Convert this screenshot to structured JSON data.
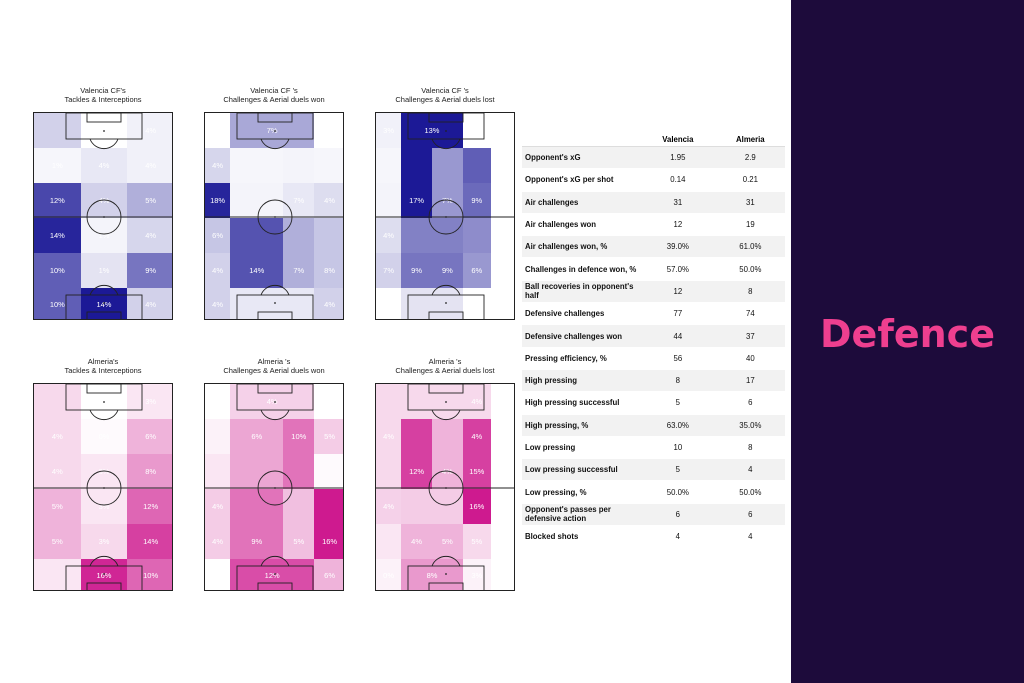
{
  "panel_title": "Defence",
  "colors": {
    "panel_bg": "#1d0b3b",
    "panel_title": "#ee3f8f",
    "valencia_base": [
      28,
      25,
      150
    ],
    "almeria_base": [
      200,
      0,
      130
    ]
  },
  "chart_data": [
    {
      "type": "heatmap",
      "team": "valencia",
      "title": [
        "Valencia CF's",
        "Tackles & Interceptions"
      ],
      "rows": [
        {
          "fr": [
            0.2,
            0.0,
            0.06
          ],
          "lab": [
            "",
            "8%",
            "4%"
          ]
        },
        {
          "fr": [
            0.04,
            0.1,
            0.06
          ],
          "lab": [
            "1%",
            "4%",
            "4%"
          ]
        },
        {
          "fr": [
            0.8,
            0.2,
            0.35
          ],
          "lab": [
            "12%",
            "4%",
            "5%"
          ]
        },
        {
          "fr": [
            0.95,
            0.05,
            0.18
          ],
          "lab": [
            "14%",
            "1%",
            "4%"
          ]
        },
        {
          "fr": [
            0.7,
            0.12,
            0.6
          ],
          "lab": [
            "10%",
            "1%",
            "9%"
          ]
        },
        {
          "fr": [
            0.7,
            1.0,
            0.2
          ],
          "lab": [
            "10%",
            "14%",
            "4%"
          ]
        }
      ]
    },
    {
      "type": "heatmap",
      "team": "valencia",
      "title": [
        "Valencia CF 's",
        "Challenges & Aerial duels won"
      ],
      "cols": [
        0.18,
        0.38,
        0.22,
        0.22
      ],
      "rows": [
        {
          "merge": true,
          "fr": [
            0.0,
            0.38,
            0.0
          ],
          "lab": [
            "",
            "7%",
            "0%"
          ]
        },
        {
          "fr": [
            0.18,
            0.04,
            0.05,
            0.04
          ],
          "lab": [
            "4%",
            "",
            "",
            ""
          ]
        },
        {
          "fr": [
            0.95,
            0.05,
            0.1,
            0.15
          ],
          "lab": [
            "18%",
            "",
            "7%",
            "4%"
          ]
        },
        {
          "fr": [
            0.25,
            0.75,
            0.35,
            0.25
          ],
          "lab": [
            "6%",
            "",
            "",
            ""
          ]
        },
        {
          "fr": [
            0.2,
            0.75,
            0.35,
            0.25
          ],
          "lab": [
            "4%",
            "14%",
            "7%",
            "8%"
          ]
        },
        {
          "merge": true,
          "fr": [
            0.2,
            0.1,
            0.2
          ],
          "lab": [
            "4%",
            "",
            "4%"
          ]
        }
      ]
    },
    {
      "type": "heatmap",
      "team": "valencia",
      "title": [
        "Valencia CF 's",
        "Challenges & Aerial duels lost"
      ],
      "cols": [
        0.18,
        0.22,
        0.22,
        0.2
      ],
      "rows": [
        {
          "merge": true,
          "fr": [
            0.06,
            1.0,
            0.0
          ],
          "lab": [
            "3%",
            "13%",
            ""
          ]
        },
        {
          "fr": [
            0.04,
            1.0,
            0.45,
            0.7
          ],
          "lab": [
            "",
            "",
            "",
            ""
          ]
        },
        {
          "fr": [
            0.05,
            1.0,
            0.45,
            0.65
          ],
          "lab": [
            "",
            "17%",
            "7%",
            "9%"
          ]
        },
        {
          "fr": [
            0.15,
            0.55,
            0.55,
            0.5
          ],
          "lab": [
            "4%",
            "",
            "",
            ""
          ]
        },
        {
          "fr": [
            0.2,
            0.6,
            0.6,
            0.45
          ],
          "lab": [
            "7%",
            "9%",
            "9%",
            "6%"
          ]
        },
        {
          "merge": true,
          "fr": [
            0.0,
            0.12,
            0.0
          ],
          "lab": [
            "0%",
            "",
            "0%"
          ]
        }
      ]
    },
    {
      "type": "heatmap",
      "team": "almeria",
      "title": [
        "Almeria's",
        "Tackles & Interceptions"
      ],
      "rows": [
        {
          "fr": [
            0.15,
            0.0,
            0.1
          ],
          "lab": [
            "",
            "",
            "3%"
          ]
        },
        {
          "fr": [
            0.15,
            0.02,
            0.3
          ],
          "lab": [
            "4%",
            "0%",
            "6%"
          ]
        },
        {
          "fr": [
            0.15,
            0.1,
            0.4
          ],
          "lab": [
            "4%",
            "3%",
            "8%"
          ]
        },
        {
          "fr": [
            0.3,
            0.1,
            0.6
          ],
          "lab": [
            "5%",
            "3%",
            "12%"
          ]
        },
        {
          "fr": [
            0.3,
            0.15,
            0.75
          ],
          "lab": [
            "5%",
            "3%",
            "14%"
          ]
        },
        {
          "fr": [
            0.1,
            0.85,
            0.6
          ],
          "lab": [
            "",
            "16%",
            "10%"
          ]
        }
      ]
    },
    {
      "type": "heatmap",
      "team": "almeria",
      "title": [
        "Almeria 's",
        "Challenges & Aerial duels won"
      ],
      "cols": [
        0.18,
        0.38,
        0.22,
        0.22
      ],
      "rows": [
        {
          "merge": true,
          "fr": [
            0.0,
            0.18,
            0.0
          ],
          "lab": [
            "0%",
            "4%",
            "0%"
          ]
        },
        {
          "fr": [
            0.05,
            0.35,
            0.55,
            0.2
          ],
          "lab": [
            "",
            "6%",
            "10%",
            "5%"
          ]
        },
        {
          "fr": [
            0.1,
            0.35,
            0.55,
            0.02
          ],
          "lab": [
            "",
            "",
            "",
            ""
          ]
        },
        {
          "fr": [
            0.2,
            0.55,
            0.25,
            0.9
          ],
          "lab": [
            "4%",
            "",
            "",
            ""
          ]
        },
        {
          "fr": [
            0.2,
            0.55,
            0.25,
            0.9
          ],
          "lab": [
            "4%",
            "9%",
            "5%",
            "16%"
          ]
        },
        {
          "merge": true,
          "fr": [
            0.0,
            0.7,
            0.3
          ],
          "lab": [
            "",
            "12%",
            "6%"
          ]
        }
      ]
    },
    {
      "type": "heatmap",
      "team": "almeria",
      "title": [
        "Almeria 's",
        "Challenges & Aerial duels lost"
      ],
      "cols": [
        0.18,
        0.22,
        0.22,
        0.2
      ],
      "rows": [
        {
          "merge": true,
          "fr": [
            0.15,
            0.15,
            0.15
          ],
          "lab": [
            "",
            "",
            "4%"
          ]
        },
        {
          "fr": [
            0.15,
            0.75,
            0.3,
            0.75
          ],
          "lab": [
            "4%",
            "",
            "",
            "4%"
          ]
        },
        {
          "fr": [
            0.15,
            0.75,
            0.3,
            0.75
          ],
          "lab": [
            "",
            "12%",
            "4%",
            "15%"
          ]
        },
        {
          "fr": [
            0.18,
            0.2,
            0.2,
            0.9
          ],
          "lab": [
            "4%",
            "",
            "",
            "16%"
          ]
        },
        {
          "fr": [
            0.1,
            0.3,
            0.3,
            0.15
          ],
          "lab": [
            "",
            "4%",
            "5%",
            "5%"
          ]
        },
        {
          "merge": true,
          "fr": [
            0.05,
            0.4,
            0.05
          ],
          "lab": [
            "0%",
            "8%",
            "3%"
          ]
        }
      ]
    }
  ],
  "stats_table": {
    "headers": [
      "",
      "Valencia",
      "Almeria"
    ],
    "rows": [
      [
        "Opponent's xG",
        "1.95",
        "2.9"
      ],
      [
        "Opponent's xG per shot",
        "0.14",
        "0.21"
      ],
      [
        "Air challenges",
        "31",
        "31"
      ],
      [
        "Air challenges won",
        "12",
        "19"
      ],
      [
        "Air challenges won, %",
        "39.0%",
        "61.0%"
      ],
      [
        "Challenges in defence won, %",
        "57.0%",
        "50.0%"
      ],
      [
        "Ball recoveries in opponent's half",
        "12",
        "8"
      ],
      [
        "Defensive challenges",
        "77",
        "74"
      ],
      [
        "Defensive challenges won",
        "44",
        "37"
      ],
      [
        "Pressing efficiency, %",
        "56",
        "40"
      ],
      [
        "High pressing",
        "8",
        "17"
      ],
      [
        "High pressing successful",
        "5",
        "6"
      ],
      [
        "High pressing, %",
        "63.0%",
        "35.0%"
      ],
      [
        "Low pressing",
        "10",
        "8"
      ],
      [
        "Low pressing successful",
        "5",
        "4"
      ],
      [
        "Low pressing, %",
        "50.0%",
        "50.0%"
      ],
      [
        "Opponent's passes per defensive action",
        "6",
        "6"
      ],
      [
        "Blocked shots",
        "4",
        "4"
      ]
    ]
  }
}
